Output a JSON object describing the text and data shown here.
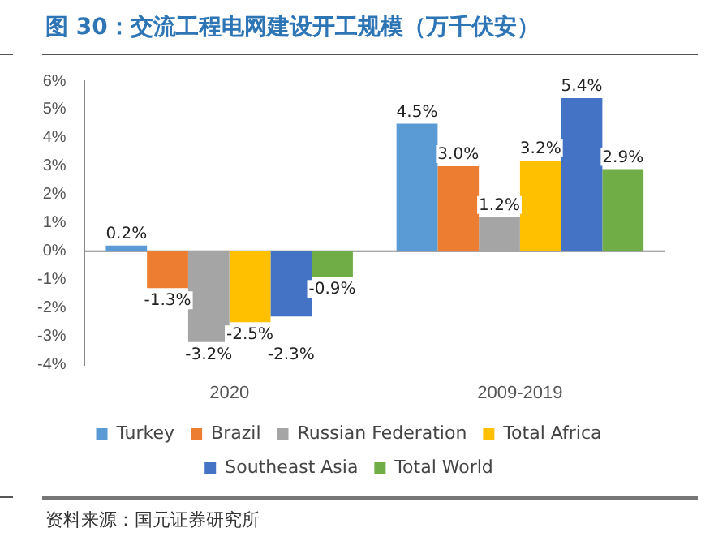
{
  "chart_data": {
    "type": "bar",
    "title": "图 30：交流工程电网建设开工规模（万千伏安）",
    "categories": [
      "2020",
      "2009-2019"
    ],
    "series": [
      {
        "name": "Turkey",
        "color": "#5b9bd5",
        "values": [
          0.2,
          4.5
        ],
        "value_labels": [
          "0.2%",
          "4.5%"
        ]
      },
      {
        "name": "Brazil",
        "color": "#ed7d31",
        "values": [
          -1.3,
          3.0
        ],
        "value_labels": [
          "-1.3%",
          "3.0%"
        ]
      },
      {
        "name": "Russian Federation",
        "color": "#a5a5a5",
        "values": [
          -3.2,
          1.2
        ],
        "value_labels": [
          "-3.2%",
          "1.2%"
        ]
      },
      {
        "name": "Total Africa",
        "color": "#ffc000",
        "values": [
          -2.5,
          3.2
        ],
        "value_labels": [
          "-2.5%",
          "3.2%"
        ]
      },
      {
        "name": "Southeast Asia",
        "color": "#4472c4",
        "values": [
          -2.3,
          5.4
        ],
        "value_labels": [
          "-2.3%",
          "5.4%"
        ]
      },
      {
        "name": "Total World",
        "color": "#70ad47",
        "values": [
          -0.9,
          2.9
        ],
        "value_labels": [
          "-0.9%",
          "2.9%"
        ]
      }
    ],
    "ylim": [
      -4,
      6
    ],
    "yticks": [
      {
        "value": -4,
        "label": "-4%"
      },
      {
        "value": -3,
        "label": "-3%"
      },
      {
        "value": -2,
        "label": "-2%"
      },
      {
        "value": -1,
        "label": "-1%"
      },
      {
        "value": 0,
        "label": "0%"
      },
      {
        "value": 1,
        "label": "1%"
      },
      {
        "value": 2,
        "label": "2%"
      },
      {
        "value": 3,
        "label": "3%"
      },
      {
        "value": 4,
        "label": "4%"
      },
      {
        "value": 5,
        "label": "5%"
      },
      {
        "value": 6,
        "label": "6%"
      }
    ],
    "grid": false,
    "legend": "bottom",
    "ref_lines": [
      {
        "axis": "y",
        "value": 0,
        "color": "#888888"
      }
    ],
    "annotations": [
      "资料来源：国元证券研究所"
    ]
  }
}
